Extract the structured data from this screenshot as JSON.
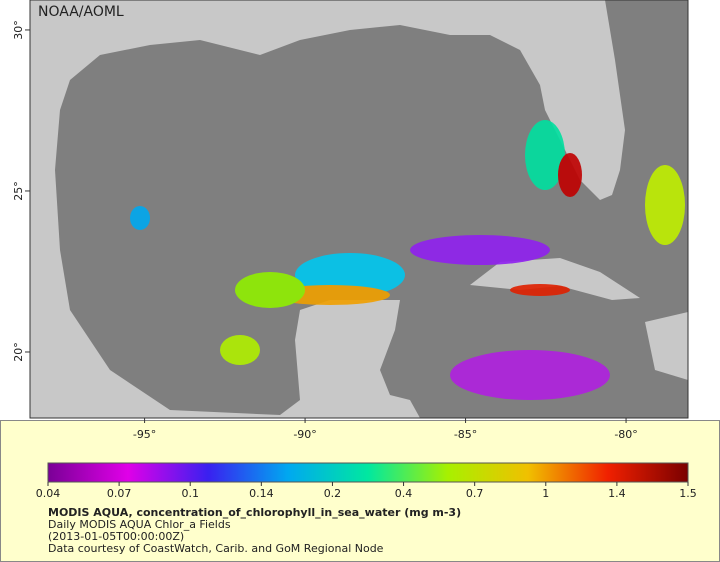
{
  "map": {
    "credit": "NOAA/AOML",
    "lon_range": [
      -98.57,
      -78.07
    ],
    "lat_range": [
      17.95,
      30.93
    ],
    "lat_ticks": [
      {
        "value": 30,
        "label": "30°"
      },
      {
        "value": 25,
        "label": "25°"
      },
      {
        "value": 20,
        "label": "20°"
      }
    ],
    "lon_ticks": [
      {
        "value": -95,
        "label": "-95°"
      },
      {
        "value": -90,
        "label": "-90°"
      },
      {
        "value": -85,
        "label": "-85°"
      },
      {
        "value": -80,
        "label": "-80°"
      }
    ]
  },
  "colorbar": {
    "ticks": [
      0.04,
      0.07,
      0.1,
      0.14,
      0.2,
      0.4,
      0.7,
      1,
      1.4,
      1.5
    ],
    "colors": [
      "#7a0096",
      "#e000e8",
      "#3a20f0",
      "#00a8f0",
      "#00e8a0",
      "#a8f000",
      "#f0c000",
      "#f02000",
      "#7a0000"
    ]
  },
  "caption": {
    "title": "MODIS AQUA, concentration_of_chlorophyll_in_sea_water (mg m-3)",
    "lines": [
      "Daily MODIS AQUA Chlor_a Fields",
      "(2013-01-05T00:00:00Z)",
      "Data courtesy of CoastWatch, Carib. and GoM Regional Node"
    ]
  }
}
